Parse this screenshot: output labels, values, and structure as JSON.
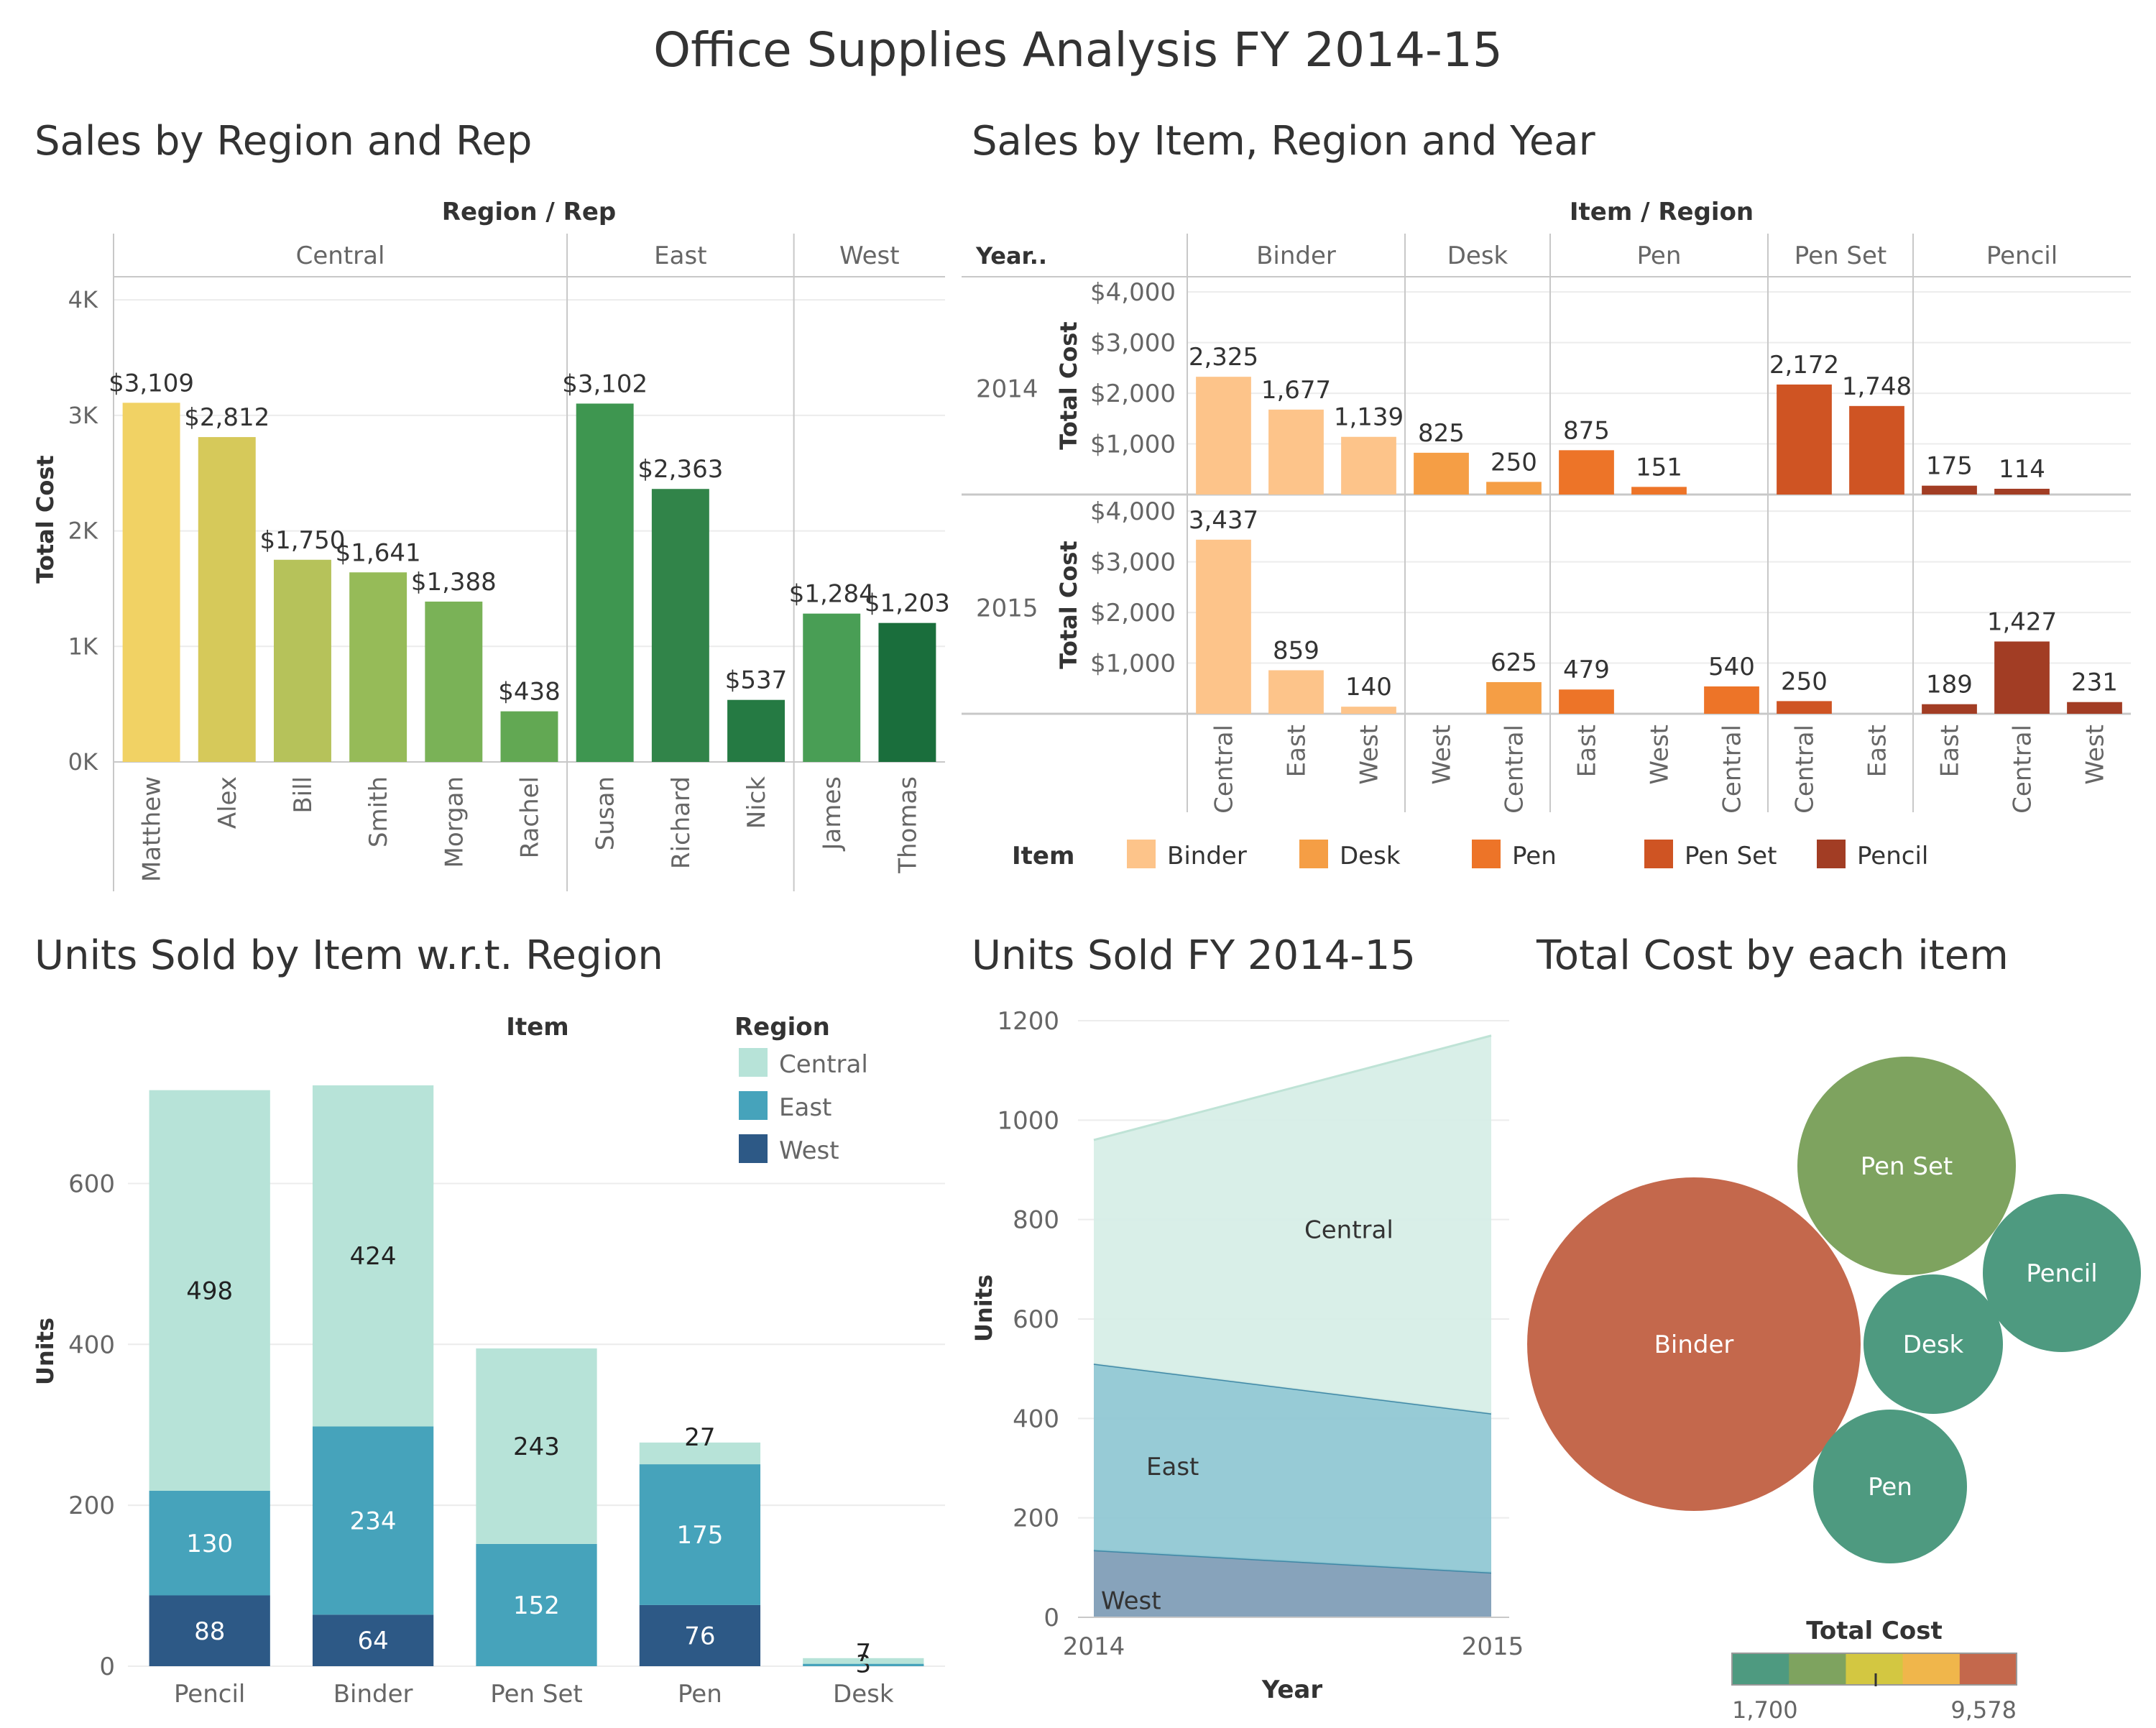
{
  "dashboard": {
    "title": "Office Supplies Analysis FY 2014-15"
  },
  "chart_data": [
    {
      "id": "sales_by_region_rep",
      "type": "bar",
      "title": "Sales by Region and Rep",
      "header": "Region  /  Rep",
      "ylabel": "Total Cost",
      "ylim": [
        0,
        4200
      ],
      "yticks": [
        {
          "v": 0,
          "label": "0K"
        },
        {
          "v": 1000,
          "label": "1K"
        },
        {
          "v": 2000,
          "label": "2K"
        },
        {
          "v": 3000,
          "label": "3K"
        },
        {
          "v": 4000,
          "label": "4K"
        }
      ],
      "groups": [
        {
          "region": "Central",
          "reps": [
            {
              "name": "Matthew",
              "value": 3109,
              "label": "$3,109",
              "color": "#f1d264"
            },
            {
              "name": "Alex",
              "value": 2812,
              "label": "$2,812",
              "color": "#d6c95a"
            },
            {
              "name": "Bill",
              "value": 1750,
              "label": "$1,750",
              "color": "#b6c25a"
            },
            {
              "name": "Smith",
              "value": 1641,
              "label": "$1,641",
              "color": "#96bb58"
            },
            {
              "name": "Morgan",
              "value": 1388,
              "label": "$1,388",
              "color": "#7ab257"
            },
            {
              "name": "Rachel",
              "value": 438,
              "label": "$438",
              "color": "#62a853"
            }
          ]
        },
        {
          "region": "East",
          "reps": [
            {
              "name": "Susan",
              "value": 3102,
              "label": "$3,102",
              "color": "#3e9650"
            },
            {
              "name": "Richard",
              "value": 2363,
              "label": "$2,363",
              "color": "#318449"
            },
            {
              "name": "Nick",
              "value": 537,
              "label": "$537",
              "color": "#257a43"
            }
          ]
        },
        {
          "region": "West",
          "reps": [
            {
              "name": "James",
              "value": 1284,
              "label": "$1,284",
              "color": "#499e55"
            },
            {
              "name": "Thomas",
              "value": 1203,
              "label": "$1,203",
              "color": "#1a6e3c"
            }
          ]
        }
      ]
    },
    {
      "id": "sales_by_item_region_year",
      "type": "bar",
      "title": "Sales by Item, Region and Year",
      "header": "Item  /  Region",
      "row_header": "Year..",
      "ylabel": "Total Cost",
      "ylim": [
        0,
        4300
      ],
      "yticks": [
        {
          "v": 1000,
          "label": "$1,000"
        },
        {
          "v": 2000,
          "label": "$2,000"
        },
        {
          "v": 3000,
          "label": "$3,000"
        },
        {
          "v": 4000,
          "label": "$4,000"
        }
      ],
      "years": [
        "2014",
        "2015"
      ],
      "items": [
        {
          "name": "Binder",
          "color": "#fdc48a",
          "regions": [
            "Central",
            "East",
            "West"
          ],
          "values": {
            "2014": [
              2325,
              1677,
              1139
            ],
            "2015": [
              3437,
              859,
              140
            ]
          }
        },
        {
          "name": "Desk",
          "color": "#f59e45",
          "regions": [
            "West",
            "Central"
          ],
          "values": {
            "2014": [
              825,
              250
            ],
            "2015": [
              null,
              625
            ]
          }
        },
        {
          "name": "Pen",
          "color": "#ed7428",
          "regions": [
            "East",
            "West",
            "Central"
          ],
          "values": {
            "2014": [
              875,
              151,
              null
            ],
            "2015": [
              479,
              null,
              540
            ]
          }
        },
        {
          "name": "Pen Set",
          "color": "#cf5423",
          "regions": [
            "Central",
            "East"
          ],
          "values": {
            "2014": [
              2172,
              1748
            ],
            "2015": [
              250,
              null
            ]
          }
        },
        {
          "name": "Pencil",
          "color": "#a23d24",
          "regions": [
            "East",
            "Central",
            "West"
          ],
          "values": {
            "2014": [
              175,
              114,
              null
            ],
            "2015": [
              189,
              1427,
              231
            ]
          }
        }
      ],
      "legend_title": "Item"
    },
    {
      "id": "units_by_item_region",
      "type": "bar",
      "stacked": true,
      "title": "Units Sold by Item w.r.t. Region",
      "xlabel": "Item",
      "ylabel": "Units",
      "ylim": [
        0,
        780
      ],
      "yticks": [
        0,
        200,
        400,
        600
      ],
      "categories": [
        "Pencil",
        "Binder",
        "Pen Set",
        "Pen",
        "Desk"
      ],
      "series": [
        {
          "name": "West",
          "color": "#2d5986",
          "values": [
            88,
            64,
            0,
            76,
            0
          ]
        },
        {
          "name": "East",
          "color": "#46a3bb",
          "values": [
            130,
            234,
            152,
            175,
            3
          ]
        },
        {
          "name": "Central",
          "color": "#b7e3d8",
          "values": [
            498,
            424,
            243,
            27,
            7
          ]
        }
      ],
      "legend_title": "Region",
      "legend_order": [
        "Central",
        "East",
        "West"
      ],
      "legend_position": "top-right",
      "grid": true
    },
    {
      "id": "units_fy",
      "type": "area",
      "stacked": true,
      "title": "Units Sold FY 2014-15",
      "xlabel": "Year",
      "ylabel": "Units",
      "x": [
        "2014",
        "2015"
      ],
      "ylim": [
        0,
        1200
      ],
      "yticks": [
        0,
        200,
        400,
        600,
        800,
        1000,
        1200
      ],
      "series": [
        {
          "name": "West",
          "color": "#7d9bb5",
          "values": [
            135,
            90
          ]
        },
        {
          "name": "East",
          "color": "#8ec7d3",
          "values": [
            375,
            320
          ]
        },
        {
          "name": "Central",
          "color": "#d6eee6",
          "values": [
            450,
            760
          ]
        }
      ],
      "grid": true
    },
    {
      "id": "total_cost_by_item",
      "type": "bubble",
      "title": "Total Cost by each item",
      "color_legend": {
        "title": "Total Cost",
        "min_label": "1,700",
        "max_label": "9,578",
        "colors": [
          "#4e9a80",
          "#7ea35f",
          "#d3c741",
          "#f0b64b",
          "#c4684c"
        ]
      },
      "bubbles": [
        {
          "name": "Binder",
          "color": "#c4684c"
        },
        {
          "name": "Pen Set",
          "color": "#7ea35f"
        },
        {
          "name": "Pencil",
          "color": "#4e9a80"
        },
        {
          "name": "Desk",
          "color": "#4e9a80"
        },
        {
          "name": "Pen",
          "color": "#4e9a80"
        }
      ]
    }
  ]
}
